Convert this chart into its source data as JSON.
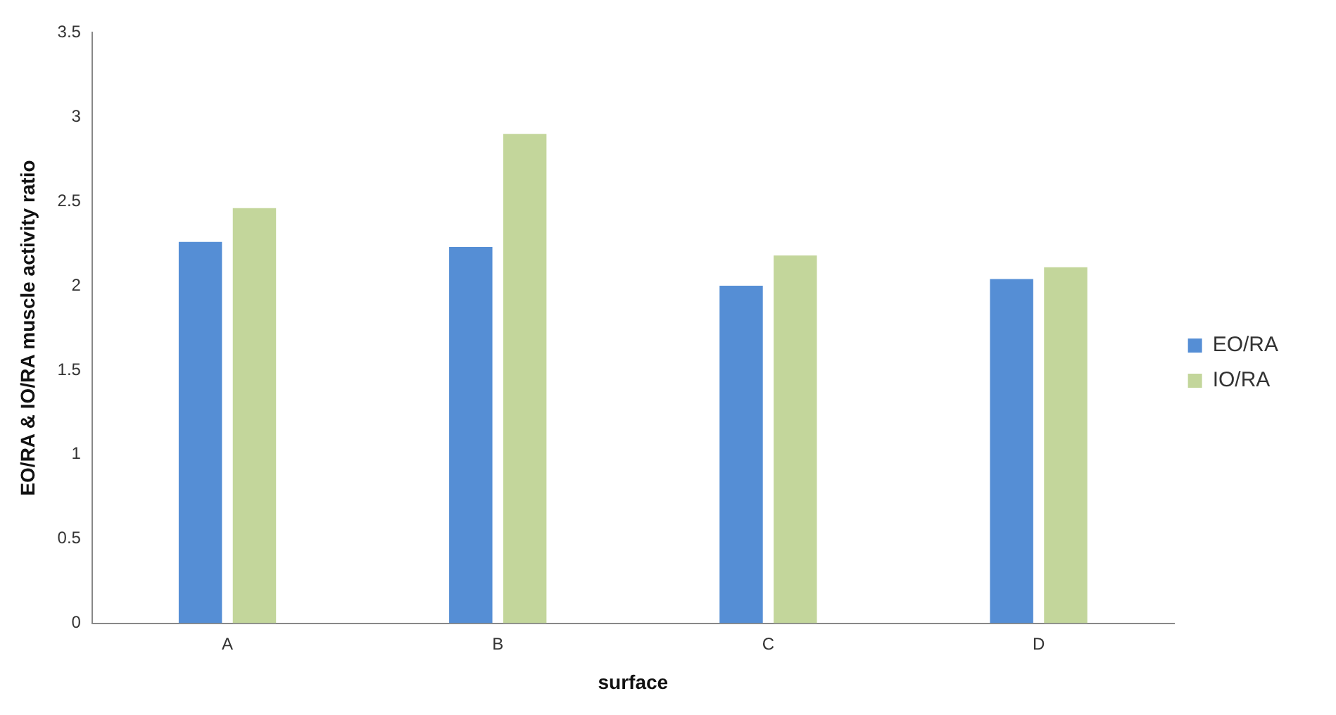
{
  "chart_data": {
    "type": "bar",
    "xlabel": "surface",
    "ylabel": "EO/RA & IO/RA muscle activity ratio",
    "categories": [
      "A",
      "B",
      "C",
      "D"
    ],
    "series": [
      {
        "name": "EO/RA",
        "color": "#558ed5",
        "values": [
          2.26,
          2.23,
          2.0,
          2.04
        ]
      },
      {
        "name": "IO/RA",
        "color": "#c3d69b",
        "values": [
          2.46,
          2.9,
          2.18,
          2.11
        ]
      }
    ],
    "ylim": [
      0,
      3.5
    ],
    "yticks": [
      0,
      0.5,
      1,
      1.5,
      2,
      2.5,
      3,
      3.5
    ],
    "grid": false,
    "legend": "right"
  }
}
